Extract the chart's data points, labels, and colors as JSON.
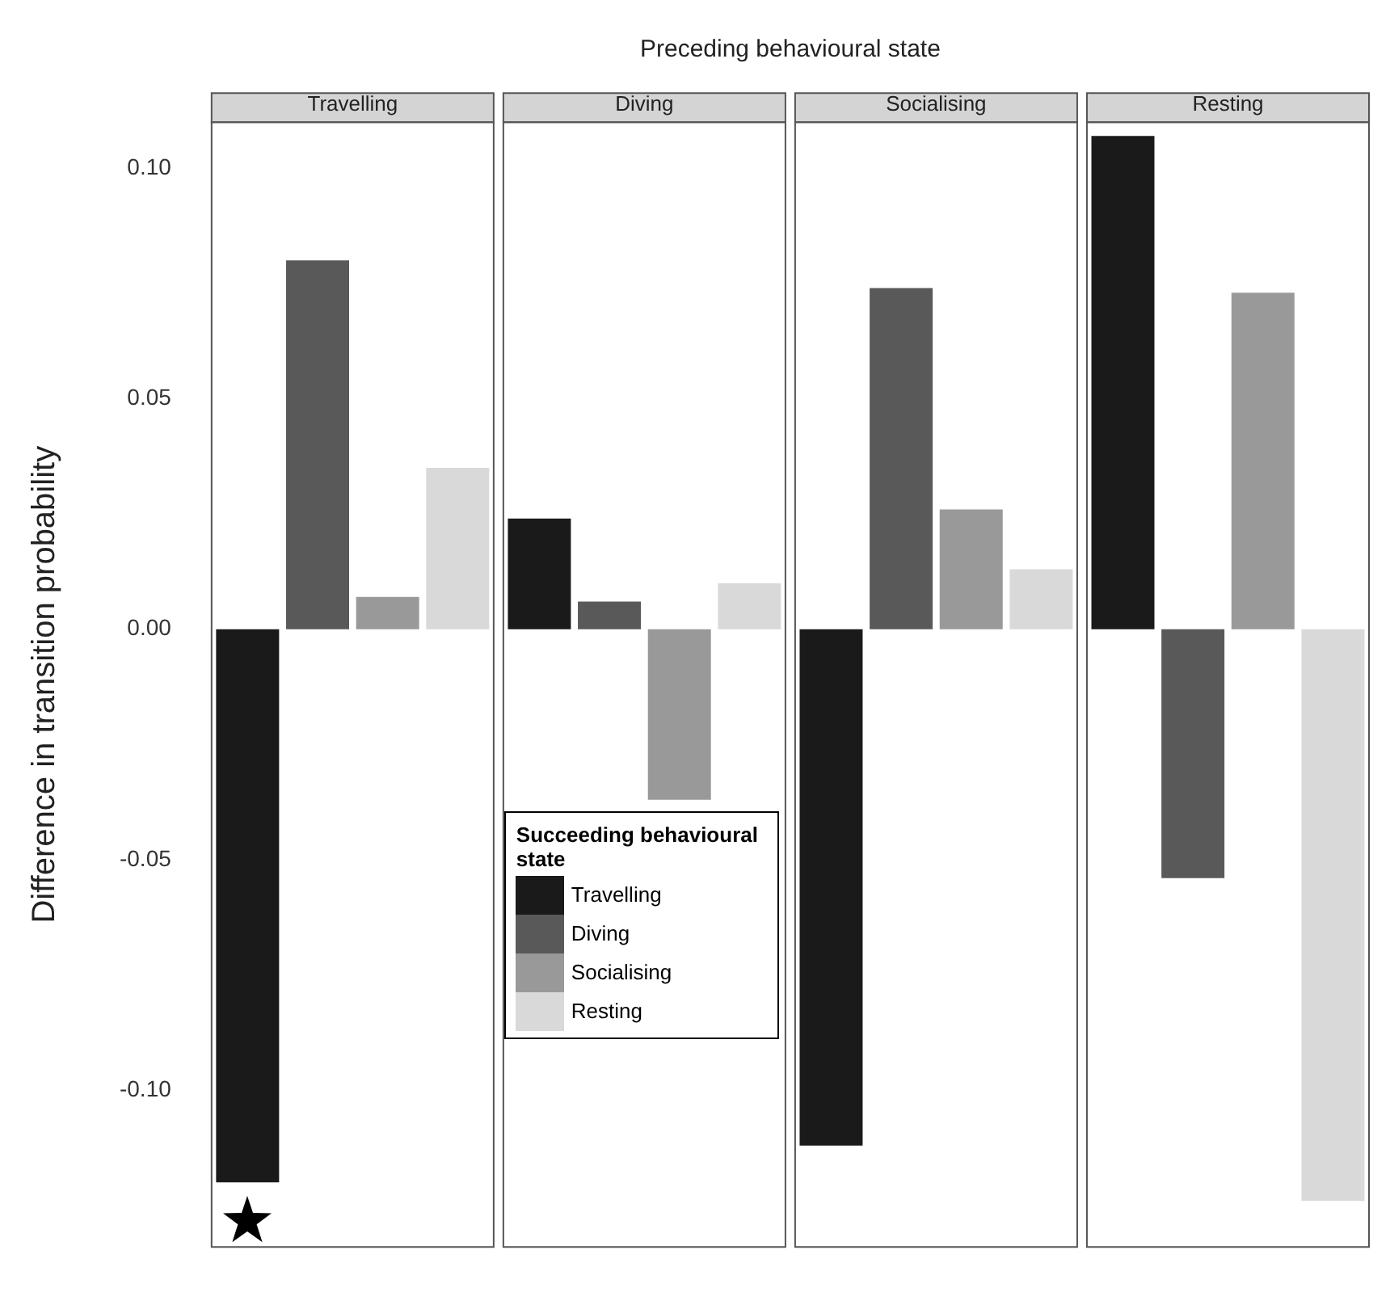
{
  "chart_data": {
    "type": "bar",
    "xlabel": "Preceding behavioural state",
    "ylabel": "Difference in transition probability",
    "legend_title": "Succeeding behavioural state",
    "categories": [
      "Travelling",
      "Diving",
      "Socialising",
      "Resting"
    ],
    "series": [
      {
        "name": "Travelling",
        "color": "#1a1a1a",
        "values": [
          -0.12,
          0.024,
          -0.112,
          0.107
        ]
      },
      {
        "name": "Diving",
        "color": "#595959",
        "values": [
          0.08,
          0.006,
          0.074,
          -0.054
        ]
      },
      {
        "name": "Socialising",
        "color": "#999999",
        "values": [
          0.007,
          -0.037,
          0.026,
          0.073
        ]
      },
      {
        "name": "Resting",
        "color": "#d9d9d9",
        "values": [
          0.035,
          0.01,
          0.013,
          -0.124
        ]
      }
    ],
    "ylim": [
      -0.134,
      0.11
    ],
    "yticks": [
      {
        "value": -0.1,
        "label": "-0.10"
      },
      {
        "value": -0.05,
        "label": "-0.05"
      },
      {
        "value": 0,
        "label": "0.00"
      },
      {
        "value": 0.05,
        "label": "0.05"
      },
      {
        "value": 0.1,
        "label": "0.10"
      }
    ],
    "grid": false,
    "legend": "bottom left"
  }
}
